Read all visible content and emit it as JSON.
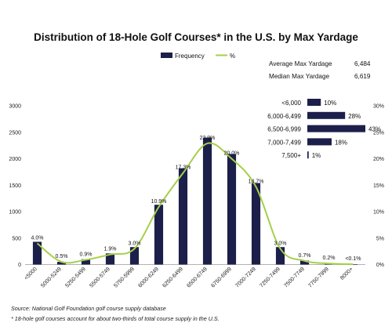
{
  "chart_data": {
    "type": "bar",
    "title": "Distribution of 18-Hole Golf Courses* in the U.S. by Max Yardage",
    "categories": [
      "<5000",
      "5000-5249",
      "5250-5499",
      "5500-5749",
      "5750-5999",
      "6000-6249",
      "6250-6499",
      "6500-6749",
      "6750-6999",
      "7000-7249",
      "7250-7499",
      "7500-7749",
      "7750-7999",
      "8000+"
    ],
    "series": [
      {
        "name": "Frequency",
        "type": "bar",
        "axis": "left",
        "color": "#1c1f4a",
        "values": [
          430,
          50,
          100,
          210,
          330,
          1130,
          1820,
          2400,
          2090,
          1540,
          330,
          75,
          20,
          5
        ]
      },
      {
        "name": "%",
        "type": "line",
        "axis": "right",
        "color": "#a6cf4a",
        "values": [
          4.0,
          0.5,
          0.9,
          1.9,
          3.0,
          10.9,
          17.3,
          22.9,
          20.0,
          14.7,
          3.0,
          0.7,
          0.2,
          0.05
        ],
        "labels": [
          "4.0%",
          "0.5%",
          "0.9%",
          "1.9%",
          "3.0%",
          "10.9%",
          "17.3%",
          "22.9%",
          "20.0%",
          "14.7%",
          "3.0%",
          "0.7%",
          "0.2%",
          "<0.1%"
        ]
      }
    ],
    "ylim_left": [
      0,
      3000
    ],
    "yticks_left": [
      "0",
      "500",
      "1000",
      "1500",
      "2000",
      "2500",
      "3000"
    ],
    "ylim_right": [
      0,
      30
    ],
    "yticks_right": [
      "0%",
      "5%",
      "10%",
      "15%",
      "20%",
      "25%",
      "30%"
    ],
    "grid": false,
    "legend_position": "top-center",
    "inset": {
      "rows": [
        {
          "label": "<6,000",
          "value": 10,
          "text": "10%"
        },
        {
          "label": "6,000-6,499",
          "value": 28,
          "text": "28%"
        },
        {
          "label": "6,500-6,999",
          "value": 43,
          "text": "43%"
        },
        {
          "label": "7,000-7,499",
          "value": 18,
          "text": "18%"
        },
        {
          "label": "7,500+",
          "value": 1,
          "text": "1%"
        }
      ]
    },
    "stats": [
      {
        "label": "Average Max Yardage",
        "value": "6,484"
      },
      {
        "label": "Median Max Yardage",
        "value": "6,619"
      }
    ],
    "footnotes": [
      "Source: National Golf Foundation golf course supply database",
      "* 18-hole golf courses account for about two-thirds of total course supply in the U.S."
    ]
  }
}
